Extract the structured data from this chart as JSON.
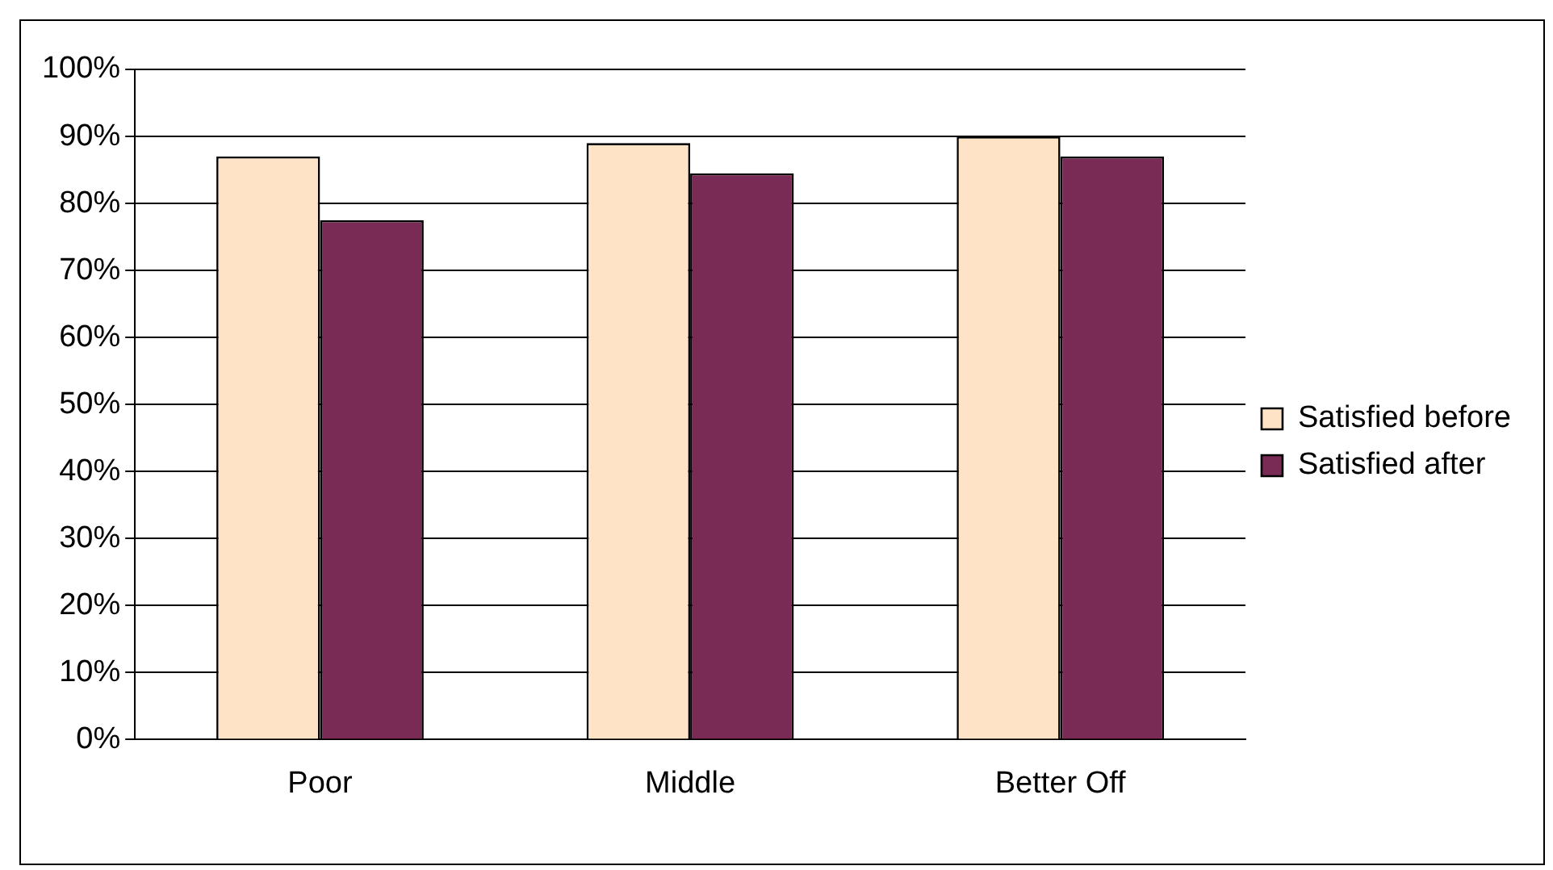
{
  "chart_data": {
    "type": "bar",
    "categories": [
      "Poor",
      "Middle",
      "Better Off"
    ],
    "series": [
      {
        "name": "Satisfied before",
        "color": "#fee3c6",
        "values": [
          87,
          89,
          90
        ]
      },
      {
        "name": "Satisfied after",
        "color": "#7a2b55",
        "values": [
          77.5,
          84.5,
          87
        ]
      }
    ],
    "ylim": [
      0,
      100
    ],
    "yticks": [
      {
        "value": 0,
        "label": "0%"
      },
      {
        "value": 10,
        "label": "10%"
      },
      {
        "value": 20,
        "label": "20%"
      },
      {
        "value": 30,
        "label": "30%"
      },
      {
        "value": 40,
        "label": "40%"
      },
      {
        "value": 50,
        "label": "50%"
      },
      {
        "value": 60,
        "label": "60%"
      },
      {
        "value": 70,
        "label": "70%"
      },
      {
        "value": 80,
        "label": "80%"
      },
      {
        "value": 90,
        "label": "90%"
      },
      {
        "value": 100,
        "label": "100%"
      }
    ],
    "grid": "y",
    "legend": "right"
  }
}
